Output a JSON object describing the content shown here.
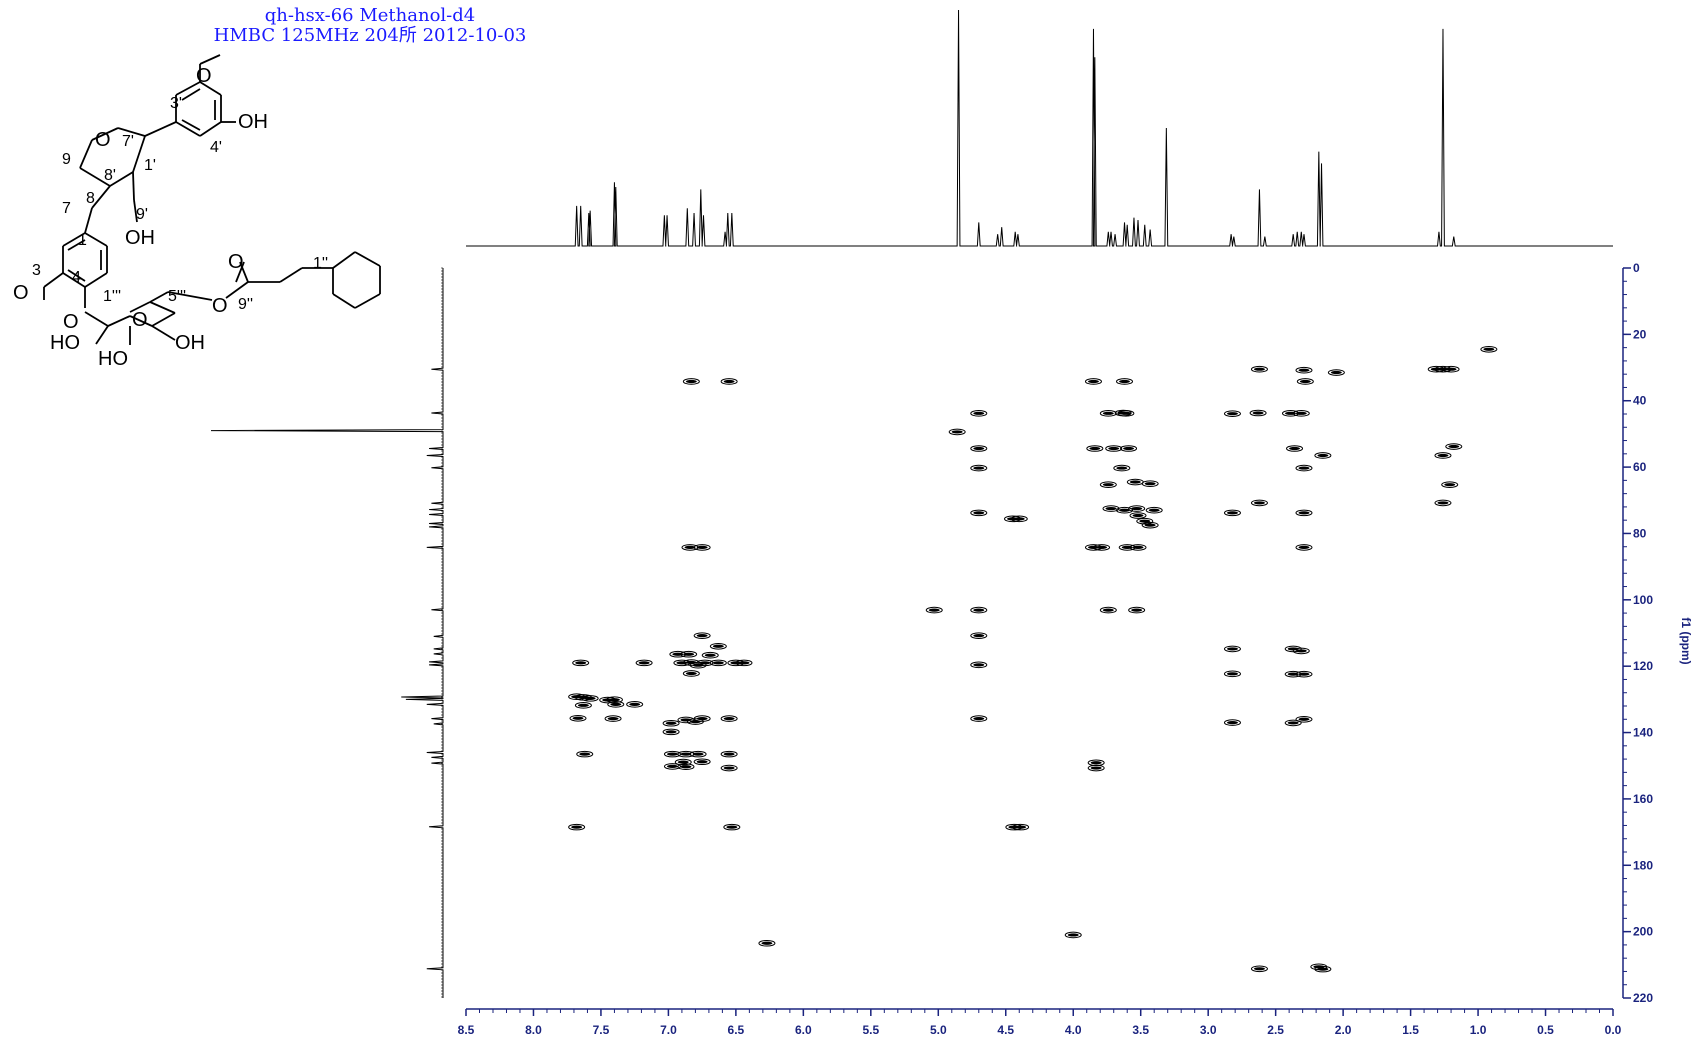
{
  "header": {
    "line1": "qh-hsx-66 Methanol-d4",
    "line2": "HMBC 125MHz 204所 2012-10-03"
  },
  "colors": {
    "axis": "#1a237e",
    "title": "#1a1aff",
    "ink": "#000000"
  },
  "chart_data": {
    "type": "heatmap",
    "x_axis": {
      "label": "",
      "range": [
        8.5,
        0.0
      ],
      "ticks": [
        8.5,
        8.0,
        7.5,
        7.0,
        6.5,
        6.0,
        5.5,
        5.0,
        4.5,
        4.0,
        3.5,
        3.0,
        2.5,
        2.0,
        1.5,
        1.0,
        0.5,
        0.0
      ],
      "tick_labels": [
        "8.5",
        "8.0",
        "7.5",
        "7.0",
        "6.5",
        "6.0",
        "5.5",
        "5.0",
        "4.5",
        "4.0",
        "3.5",
        "3.0",
        "2.5",
        "2.0",
        "1.5",
        "1.0",
        "0.5",
        "0.0"
      ]
    },
    "y_axis": {
      "label": "f1 (ppm)",
      "range": [
        0,
        220
      ],
      "ticks": [
        0,
        20,
        40,
        60,
        80,
        100,
        120,
        140,
        160,
        180,
        200,
        220
      ],
      "tick_labels": [
        "0",
        "20",
        "40",
        "60",
        "80",
        "100",
        "120",
        "140",
        "160",
        "180",
        "200",
        "220"
      ]
    },
    "f2_projection_peaks": [
      [
        7.68,
        0.17
      ],
      [
        7.65,
        0.17
      ],
      [
        7.59,
        0.14
      ],
      [
        7.58,
        0.15
      ],
      [
        7.4,
        0.27
      ],
      [
        7.39,
        0.25
      ],
      [
        7.03,
        0.13
      ],
      [
        7.01,
        0.13
      ],
      [
        6.86,
        0.16
      ],
      [
        6.81,
        0.14
      ],
      [
        6.76,
        0.24
      ],
      [
        6.74,
        0.13
      ],
      [
        6.58,
        0.06
      ],
      [
        6.56,
        0.14
      ],
      [
        6.53,
        0.14
      ],
      [
        4.85,
        1.0
      ],
      [
        4.7,
        0.1
      ],
      [
        4.56,
        0.05
      ],
      [
        4.53,
        0.08
      ],
      [
        4.43,
        0.06
      ],
      [
        4.41,
        0.05
      ],
      [
        3.85,
        0.92
      ],
      [
        3.84,
        0.8
      ],
      [
        3.74,
        0.06
      ],
      [
        3.72,
        0.06
      ],
      [
        3.69,
        0.05
      ],
      [
        3.62,
        0.1
      ],
      [
        3.6,
        0.09
      ],
      [
        3.55,
        0.12
      ],
      [
        3.52,
        0.11
      ],
      [
        3.47,
        0.09
      ],
      [
        3.43,
        0.07
      ],
      [
        3.31,
        0.5
      ],
      [
        2.83,
        0.05
      ],
      [
        2.81,
        0.04
      ],
      [
        2.62,
        0.24
      ],
      [
        2.58,
        0.04
      ],
      [
        2.37,
        0.05
      ],
      [
        2.34,
        0.06
      ],
      [
        2.31,
        0.06
      ],
      [
        2.29,
        0.05
      ],
      [
        2.18,
        0.4
      ],
      [
        2.16,
        0.35
      ],
      [
        1.29,
        0.06
      ],
      [
        1.26,
        0.92
      ],
      [
        1.18,
        0.04
      ]
    ],
    "f1_projection_peaks": [
      [
        30.5,
        0.05
      ],
      [
        43.7,
        0.05
      ],
      [
        49.0,
        1.0
      ],
      [
        54.4,
        0.06
      ],
      [
        56.5,
        0.07
      ],
      [
        60.2,
        0.05
      ],
      [
        70.9,
        0.05
      ],
      [
        72.8,
        0.06
      ],
      [
        74.3,
        0.06
      ],
      [
        77.0,
        0.06
      ],
      [
        78.0,
        0.06
      ],
      [
        84.2,
        0.07
      ],
      [
        103.0,
        0.05
      ],
      [
        111.0,
        0.04
      ],
      [
        114.8,
        0.04
      ],
      [
        116.3,
        0.04
      ],
      [
        118.7,
        0.06
      ],
      [
        119.6,
        0.06
      ],
      [
        129.3,
        0.18
      ],
      [
        130.0,
        0.16
      ],
      [
        131.5,
        0.07
      ],
      [
        135.8,
        0.05
      ],
      [
        137.4,
        0.04
      ],
      [
        146.0,
        0.07
      ],
      [
        147.5,
        0.05
      ],
      [
        149.2,
        0.05
      ],
      [
        168.4,
        0.06
      ],
      [
        211.2,
        0.07
      ]
    ],
    "cross_peaks": [
      [
        6.83,
        34.2
      ],
      [
        6.55,
        34.2
      ],
      [
        3.85,
        34.2
      ],
      [
        3.62,
        34.2
      ],
      [
        2.62,
        30.5
      ],
      [
        2.29,
        30.8
      ],
      [
        2.28,
        34.2
      ],
      [
        2.05,
        31.5
      ],
      [
        1.31,
        30.5
      ],
      [
        1.26,
        30.5
      ],
      [
        1.2,
        30.5
      ],
      [
        0.92,
        24.5
      ],
      [
        4.7,
        43.8
      ],
      [
        3.74,
        43.8
      ],
      [
        3.61,
        43.8
      ],
      [
        3.63,
        43.7
      ],
      [
        2.82,
        43.9
      ],
      [
        2.63,
        43.7
      ],
      [
        2.39,
        43.8
      ],
      [
        2.31,
        43.8
      ],
      [
        4.86,
        49.4
      ],
      [
        4.7,
        54.4
      ],
      [
        3.84,
        54.4
      ],
      [
        3.7,
        54.4
      ],
      [
        3.59,
        54.4
      ],
      [
        2.36,
        54.4
      ],
      [
        2.15,
        56.5
      ],
      [
        1.26,
        56.5
      ],
      [
        1.18,
        53.8
      ],
      [
        4.7,
        60.3
      ],
      [
        3.64,
        60.3
      ],
      [
        2.29,
        60.3
      ],
      [
        1.21,
        65.3
      ],
      [
        3.74,
        65.3
      ],
      [
        3.54,
        64.5
      ],
      [
        3.43,
        65.0
      ],
      [
        3.72,
        72.5
      ],
      [
        3.62,
        73.0
      ],
      [
        3.53,
        72.5
      ],
      [
        3.52,
        74.6
      ],
      [
        3.47,
        76.3
      ],
      [
        3.43,
        77.5
      ],
      [
        3.4,
        73.0
      ],
      [
        2.62,
        70.8
      ],
      [
        1.26,
        70.8
      ],
      [
        2.82,
        73.8
      ],
      [
        2.29,
        73.8
      ],
      [
        4.7,
        73.8
      ],
      [
        4.45,
        75.6
      ],
      [
        4.4,
        75.6
      ],
      [
        3.85,
        84.2
      ],
      [
        3.79,
        84.2
      ],
      [
        3.6,
        84.2
      ],
      [
        3.52,
        84.2
      ],
      [
        2.29,
        84.2
      ],
      [
        6.84,
        84.2
      ],
      [
        6.75,
        84.2
      ],
      [
        5.03,
        103.1
      ],
      [
        4.7,
        103.1
      ],
      [
        3.74,
        103.1
      ],
      [
        3.53,
        103.1
      ],
      [
        6.75,
        110.8
      ],
      [
        6.63,
        114.0
      ],
      [
        6.5,
        119.0
      ],
      [
        6.85,
        116.4
      ],
      [
        6.69,
        116.7
      ],
      [
        6.63,
        119.0
      ],
      [
        6.83,
        118.9
      ],
      [
        6.78,
        119.7
      ],
      [
        6.73,
        119.0
      ],
      [
        6.9,
        119.0
      ],
      [
        6.93,
        116.4
      ],
      [
        6.44,
        119.0
      ],
      [
        7.65,
        119.0
      ],
      [
        7.18,
        119.0
      ],
      [
        6.83,
        122.2
      ],
      [
        4.7,
        119.6
      ],
      [
        4.7,
        110.8
      ],
      [
        2.82,
        114.8
      ],
      [
        2.37,
        114.8
      ],
      [
        2.31,
        115.4
      ],
      [
        2.82,
        122.3
      ],
      [
        2.37,
        122.4
      ],
      [
        2.29,
        122.4
      ],
      [
        7.68,
        129.2
      ],
      [
        7.63,
        129.4
      ],
      [
        7.58,
        129.7
      ],
      [
        7.45,
        130.2
      ],
      [
        7.4,
        130.1
      ],
      [
        7.25,
        131.5
      ],
      [
        7.39,
        131.5
      ],
      [
        7.63,
        131.8
      ],
      [
        7.67,
        135.7
      ],
      [
        7.41,
        135.8
      ],
      [
        6.98,
        137.2
      ],
      [
        6.8,
        136.7
      ],
      [
        6.75,
        135.8
      ],
      [
        6.55,
        135.8
      ],
      [
        6.87,
        136.2
      ],
      [
        6.98,
        139.8
      ],
      [
        4.7,
        135.8
      ],
      [
        2.82,
        137.0
      ],
      [
        2.37,
        137.1
      ],
      [
        2.29,
        136.0
      ],
      [
        7.62,
        146.5
      ],
      [
        6.97,
        146.5
      ],
      [
        6.87,
        146.5
      ],
      [
        6.78,
        146.5
      ],
      [
        6.55,
        146.5
      ],
      [
        6.89,
        148.9
      ],
      [
        6.75,
        148.8
      ],
      [
        6.97,
        150.2
      ],
      [
        6.87,
        150.3
      ],
      [
        6.55,
        150.7
      ],
      [
        3.83,
        149.1
      ],
      [
        3.83,
        150.7
      ],
      [
        7.68,
        168.5
      ],
      [
        6.53,
        168.5
      ],
      [
        4.44,
        168.5
      ],
      [
        4.39,
        168.5
      ],
      [
        2.62,
        211.2
      ],
      [
        2.18,
        210.6
      ],
      [
        2.15,
        211.3
      ],
      [
        6.27,
        203.5
      ],
      [
        4.0,
        201.0
      ]
    ]
  },
  "structure": {
    "labels": {
      "methoxy_top": "O",
      "oh_top": "OH",
      "pos_3p": "3'",
      "pos_4p": "4'",
      "pos_7p": "7'",
      "pos_1p": "1'",
      "pos_8p": "8'",
      "pos_9p": "9'",
      "pos_9": "9",
      "pos_8": "8",
      "pos_7": "7",
      "pos_1": "1",
      "pos_3": "3",
      "pos_4": "4",
      "ring_o": "O",
      "oh_9p": "OH",
      "methoxy_left": "O",
      "glyco_o": "O",
      "sugar_ring_o": "O",
      "ester_o": "O",
      "carbonyl_o": "O",
      "pos_1ppp": "1'''",
      "pos_5ppp": "5'''",
      "pos_9pp": "9''",
      "pos_1pp": "1''",
      "ho_2": "HO",
      "ho_3": "HO",
      "oh_4": "OH"
    }
  }
}
